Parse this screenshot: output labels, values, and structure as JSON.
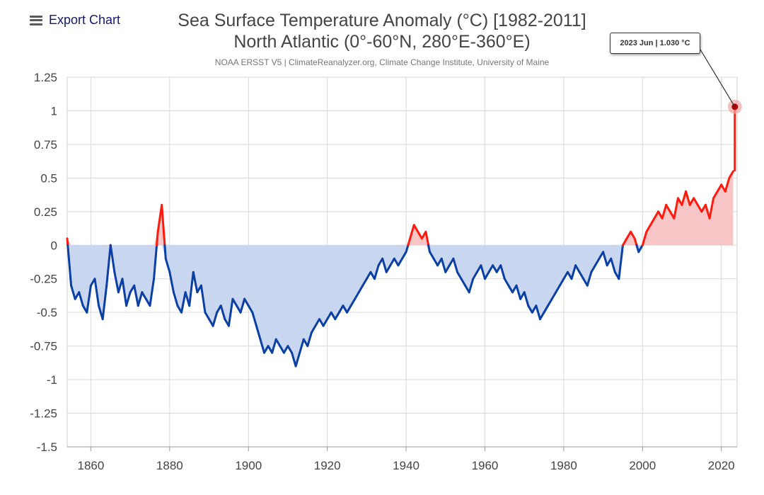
{
  "toolbar": {
    "export_label": "Export Chart",
    "export_icon": "hamburger-menu-icon"
  },
  "header": {
    "title_line1": "Sea Surface Temperature Anomaly (°C) [1982-2011]",
    "title_line2": "North Atlantic (0°-60°N, 280°E-360°E)",
    "subtitle": "NOAA ERSST V5 | ClimateReanalyzer.org, Climate Change Institute, University of Maine"
  },
  "tooltip": {
    "text": "2023 Jun | 1.030 °C"
  },
  "colors": {
    "positive": "#ff1a0d",
    "negative": "#0a3fa3",
    "positive_fill": "#f8c6c6",
    "negative_fill": "#c9d6ef",
    "grid": "#d9d9d9"
  },
  "chart_data": {
    "type": "line",
    "title": "Sea Surface Temperature Anomaly (°C) [1982-2011]",
    "subtitle": "North Atlantic (0°-60°N, 280°E-360°E)",
    "xlabel": "",
    "ylabel": "",
    "xlim": [
      1854,
      2024
    ],
    "ylim": [
      -1.5,
      1.25
    ],
    "x_ticks": [
      1860,
      1880,
      1900,
      1920,
      1940,
      1960,
      1980,
      2000,
      2020
    ],
    "y_ticks": [
      1.25,
      1,
      0.75,
      0.5,
      0.25,
      0,
      -0.25,
      -0.5,
      -0.75,
      -1,
      -1.25,
      -1.5
    ],
    "y_tick_labels": [
      "1.25",
      "1",
      "0.75",
      "0.5",
      "0.25",
      "0",
      "-0.25",
      "-0.5",
      "-0.75",
      "-1",
      "-1.25",
      "-1.5"
    ],
    "grid": true,
    "highlight": {
      "x": 2023.42,
      "y": 1.03,
      "label": "2023 Jun | 1.030 °C"
    },
    "series": [
      {
        "x": [
          1854,
          1855,
          1856,
          1857,
          1858,
          1859,
          1860,
          1861,
          1862,
          1863,
          1864,
          1865,
          1866,
          1867,
          1868,
          1869,
          1870,
          1871,
          1872,
          1873,
          1874,
          1875,
          1876,
          1877,
          1878,
          1879,
          1880,
          1881,
          1882,
          1883,
          1884,
          1885,
          1886,
          1887,
          1888,
          1889,
          1890,
          1891,
          1892,
          1893,
          1894,
          1895,
          1896,
          1897,
          1898,
          1899,
          1900,
          1901,
          1902,
          1903,
          1904,
          1905,
          1906,
          1907,
          1908,
          1909,
          1910,
          1911,
          1912,
          1913,
          1914,
          1915,
          1916,
          1917,
          1918,
          1919,
          1920,
          1921,
          1922,
          1923,
          1924,
          1925,
          1926,
          1927,
          1928,
          1929,
          1930,
          1931,
          1932,
          1933,
          1934,
          1935,
          1936,
          1937,
          1938,
          1939,
          1940,
          1941,
          1942,
          1943,
          1944,
          1945,
          1946,
          1947,
          1948,
          1949,
          1950,
          1951,
          1952,
          1953,
          1954,
          1955,
          1956,
          1957,
          1958,
          1959,
          1960,
          1961,
          1962,
          1963,
          1964,
          1965,
          1966,
          1967,
          1968,
          1969,
          1970,
          1971,
          1972,
          1973,
          1974,
          1975,
          1976,
          1977,
          1978,
          1979,
          1980,
          1981,
          1982,
          1983,
          1984,
          1985,
          1986,
          1987,
          1988,
          1989,
          1990,
          1991,
          1992,
          1993,
          1994,
          1995,
          1996,
          1997,
          1998,
          1999,
          2000,
          2001,
          2002,
          2003,
          2004,
          2005,
          2006,
          2007,
          2008,
          2009,
          2010,
          2011,
          2012,
          2013,
          2014,
          2015,
          2016,
          2017,
          2018,
          2019,
          2020,
          2021,
          2022,
          2023
        ],
        "y": [
          0.05,
          -0.3,
          -0.4,
          -0.35,
          -0.45,
          -0.5,
          -0.3,
          -0.25,
          -0.45,
          -0.55,
          -0.3,
          0.0,
          -0.2,
          -0.35,
          -0.25,
          -0.45,
          -0.35,
          -0.3,
          -0.45,
          -0.35,
          -0.4,
          -0.45,
          -0.25,
          0.1,
          0.3,
          -0.1,
          -0.2,
          -0.35,
          -0.45,
          -0.5,
          -0.35,
          -0.45,
          -0.2,
          -0.35,
          -0.3,
          -0.5,
          -0.55,
          -0.6,
          -0.5,
          -0.45,
          -0.55,
          -0.6,
          -0.4,
          -0.45,
          -0.5,
          -0.4,
          -0.45,
          -0.5,
          -0.6,
          -0.7,
          -0.8,
          -0.75,
          -0.8,
          -0.7,
          -0.75,
          -0.8,
          -0.75,
          -0.8,
          -0.9,
          -0.8,
          -0.7,
          -0.75,
          -0.65,
          -0.6,
          -0.55,
          -0.6,
          -0.55,
          -0.5,
          -0.55,
          -0.5,
          -0.45,
          -0.5,
          -0.45,
          -0.4,
          -0.35,
          -0.3,
          -0.25,
          -0.2,
          -0.25,
          -0.15,
          -0.1,
          -0.2,
          -0.15,
          -0.1,
          -0.15,
          -0.1,
          -0.05,
          0.05,
          0.15,
          0.1,
          0.05,
          0.1,
          -0.05,
          -0.1,
          -0.15,
          -0.1,
          -0.2,
          -0.15,
          -0.1,
          -0.2,
          -0.25,
          -0.3,
          -0.35,
          -0.25,
          -0.2,
          -0.15,
          -0.25,
          -0.2,
          -0.15,
          -0.2,
          -0.15,
          -0.25,
          -0.3,
          -0.35,
          -0.3,
          -0.4,
          -0.35,
          -0.45,
          -0.5,
          -0.45,
          -0.55,
          -0.5,
          -0.45,
          -0.4,
          -0.35,
          -0.3,
          -0.25,
          -0.2,
          -0.25,
          -0.15,
          -0.2,
          -0.25,
          -0.3,
          -0.2,
          -0.15,
          -0.1,
          -0.05,
          -0.15,
          -0.1,
          -0.2,
          -0.25,
          0.0,
          0.05,
          0.1,
          0.05,
          -0.05,
          0.0,
          0.1,
          0.15,
          0.2,
          0.25,
          0.2,
          0.3,
          0.25,
          0.2,
          0.35,
          0.3,
          0.4,
          0.3,
          0.35,
          0.3,
          0.25,
          0.3,
          0.2,
          0.35,
          0.4,
          0.45,
          0.4,
          0.5,
          0.55
        ]
      }
    ]
  }
}
